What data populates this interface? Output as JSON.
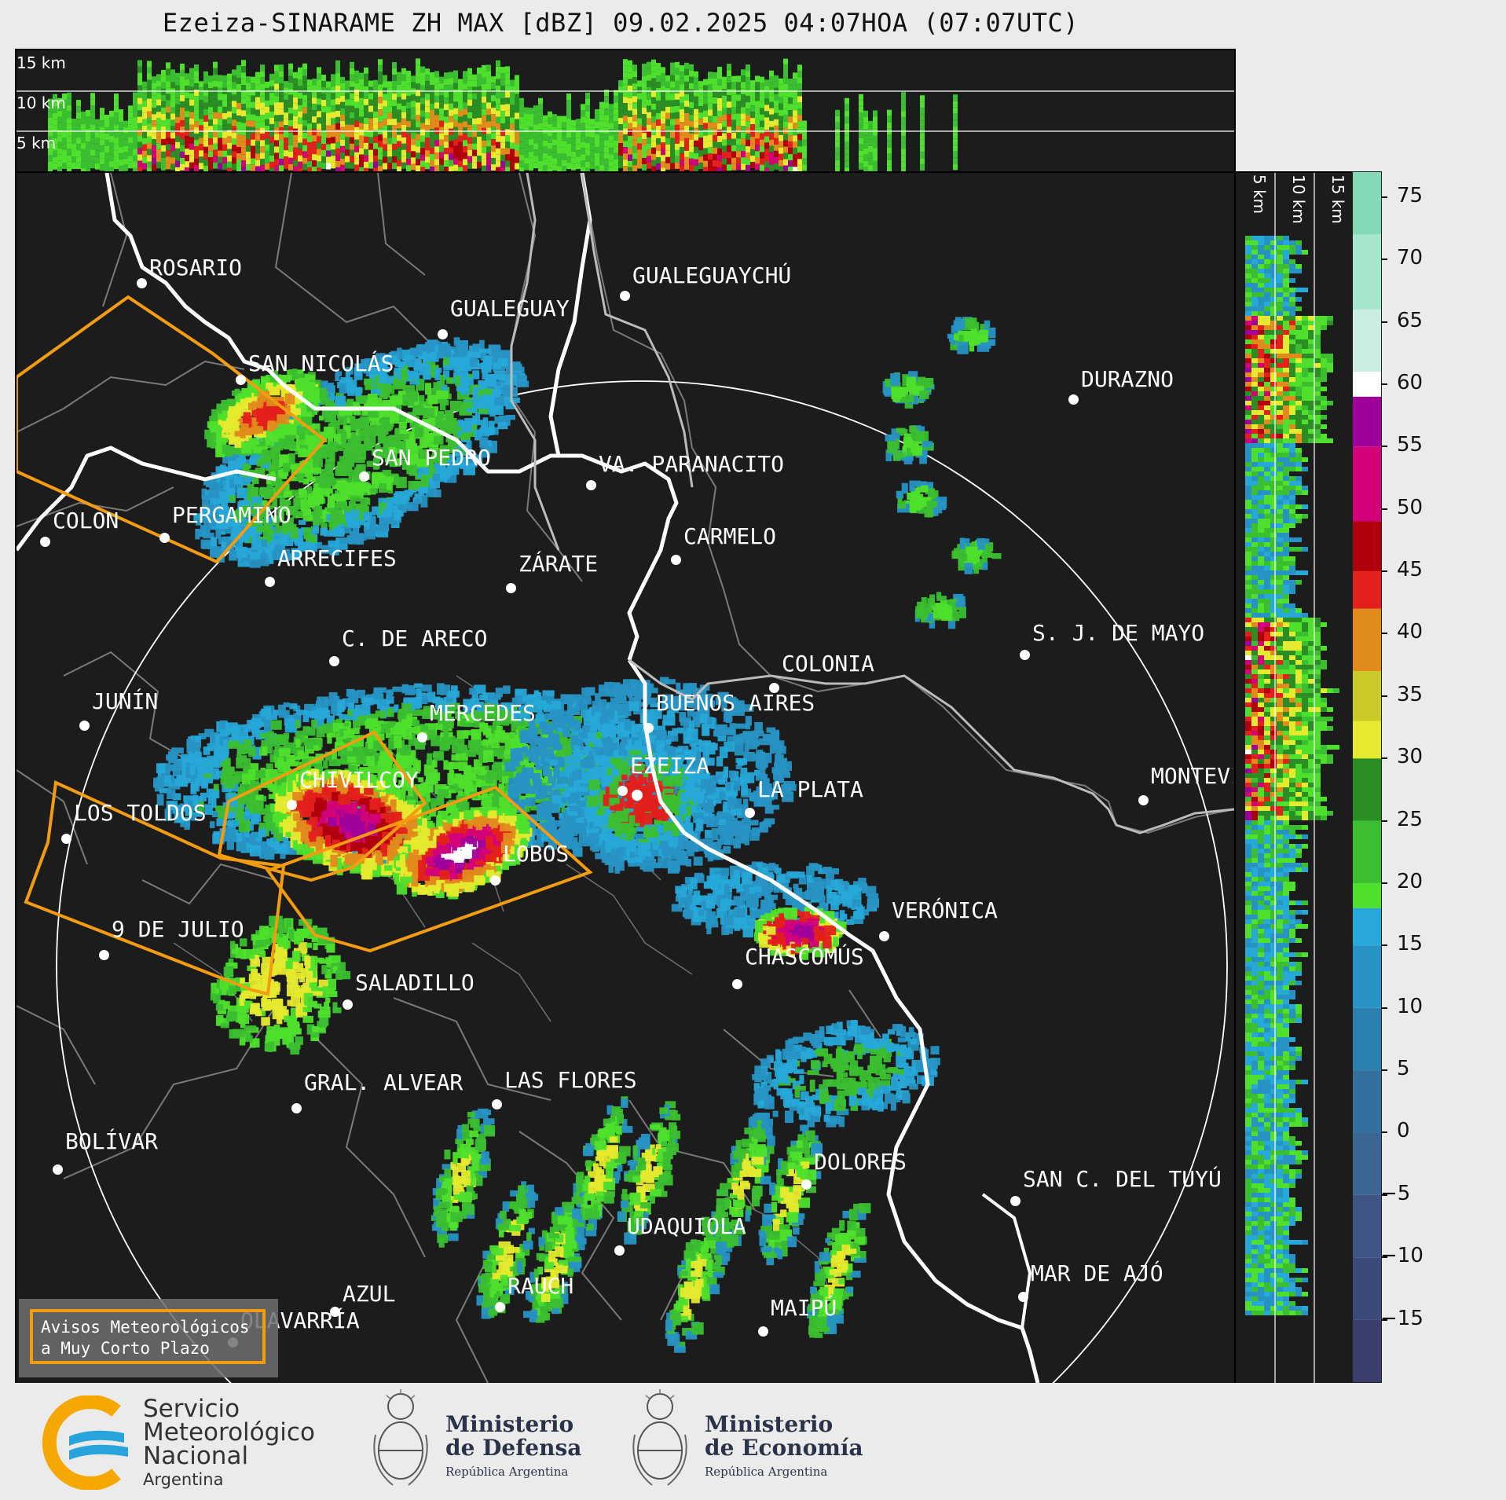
{
  "title": "Ezeiza-SINARAME ZH MAX [dBZ] 09.02.2025 04:07HOA (07:07UTC)",
  "top_panel": {
    "height_labels": [
      "15 km",
      "10 km",
      "5 km"
    ]
  },
  "right_panel": {
    "height_labels": [
      "5 km",
      "10 km",
      "15 km"
    ]
  },
  "colorbar": {
    "unit": "dBZ",
    "ticks": [
      "75",
      "70",
      "65",
      "60",
      "55",
      "50",
      "45",
      "40",
      "35",
      "30",
      "25",
      "20",
      "15",
      "10",
      "5",
      "0",
      "−5",
      "−10",
      "−15"
    ],
    "min": -20,
    "max": 77,
    "bands": [
      {
        "from": -20,
        "to": -15,
        "color": "#3a3f6e"
      },
      {
        "from": -15,
        "to": -10,
        "color": "#3c4a7a"
      },
      {
        "from": -10,
        "to": -5,
        "color": "#3e5585"
      },
      {
        "from": -5,
        "to": 0,
        "color": "#3b6592"
      },
      {
        "from": 0,
        "to": 5,
        "color": "#33709e"
      },
      {
        "from": 5,
        "to": 10,
        "color": "#2b80b0"
      },
      {
        "from": 10,
        "to": 15,
        "color": "#2793c4"
      },
      {
        "from": 15,
        "to": 18,
        "color": "#26a8d8"
      },
      {
        "from": 18,
        "to": 20,
        "color": "#4ee02c"
      },
      {
        "from": 20,
        "to": 25,
        "color": "#3bbf30"
      },
      {
        "from": 25,
        "to": 30,
        "color": "#2a8e25"
      },
      {
        "from": 30,
        "to": 33,
        "color": "#e5ea2e"
      },
      {
        "from": 33,
        "to": 37,
        "color": "#c9cc28"
      },
      {
        "from": 37,
        "to": 42,
        "color": "#e08b1c"
      },
      {
        "from": 42,
        "to": 45,
        "color": "#e3201c"
      },
      {
        "from": 45,
        "to": 49,
        "color": "#b0000c"
      },
      {
        "from": 49,
        "to": 55,
        "color": "#d4007a"
      },
      {
        "from": 55,
        "to": 59,
        "color": "#a0009a"
      },
      {
        "from": 59,
        "to": 61,
        "color": "#ffffff"
      },
      {
        "from": 61,
        "to": 66,
        "color": "#c8efe0"
      },
      {
        "from": 66,
        "to": 72,
        "color": "#a6e6cc"
      },
      {
        "from": 72,
        "to": 77,
        "color": "#84d9b6"
      }
    ]
  },
  "cities": [
    {
      "name": "ROSARIO"
    },
    {
      "name": "GUALEGUAYCHÚ"
    },
    {
      "name": "GUALEGUAY"
    },
    {
      "name": "SAN NICOLÁS"
    },
    {
      "name": "DURAZNO"
    },
    {
      "name": "SAN PEDRO"
    },
    {
      "name": "VA. PARANACITO"
    },
    {
      "name": "COLON"
    },
    {
      "name": "PERGAMINO"
    },
    {
      "name": "CARMELO"
    },
    {
      "name": "ARRECIFES"
    },
    {
      "name": "ZÁRATE"
    },
    {
      "name": "S. J. DE MAYO"
    },
    {
      "name": "C. DE ARECO"
    },
    {
      "name": "COLONIA"
    },
    {
      "name": "JUNÍN"
    },
    {
      "name": "BUENOS AIRES"
    },
    {
      "name": "MERCEDES"
    },
    {
      "name": "EZEIZA"
    },
    {
      "name": "MONTEVIDEO"
    },
    {
      "name": "CHIVILCOY"
    },
    {
      "name": "LA PLATA"
    },
    {
      "name": "LOS TOLDOS"
    },
    {
      "name": "LOBOS"
    },
    {
      "name": "VERÓNICA"
    },
    {
      "name": "9 DE JULIO"
    },
    {
      "name": "CHASCOMÚS"
    },
    {
      "name": "SALADILLO"
    },
    {
      "name": "GRAL. ALVEAR"
    },
    {
      "name": "LAS FLORES"
    },
    {
      "name": "BOLÍVAR"
    },
    {
      "name": "DOLORES"
    },
    {
      "name": "SAN C. DEL TUYÚ"
    },
    {
      "name": "UDAQUIOLA"
    },
    {
      "name": "RAUCH"
    },
    {
      "name": "MAR DE AJÓ"
    },
    {
      "name": "AZUL"
    },
    {
      "name": "OLAVARRÍA"
    },
    {
      "name": "MAIPÚ"
    }
  ],
  "legend": {
    "line1": "Avisos Meteorológicos",
    "line2": "a Muy Corto Plazo"
  },
  "footer": {
    "smn_line1": "Servicio",
    "smn_line2": "Meteorológico",
    "smn_line3": "Nacional",
    "smn_line4": "Argentina",
    "defensa_line1": "Ministerio",
    "defensa_line2": "de Defensa",
    "defensa_line3": "República Argentina",
    "economia_line1": "Ministerio",
    "economia_line2": "de Economía",
    "economia_line3": "República Argentina"
  }
}
